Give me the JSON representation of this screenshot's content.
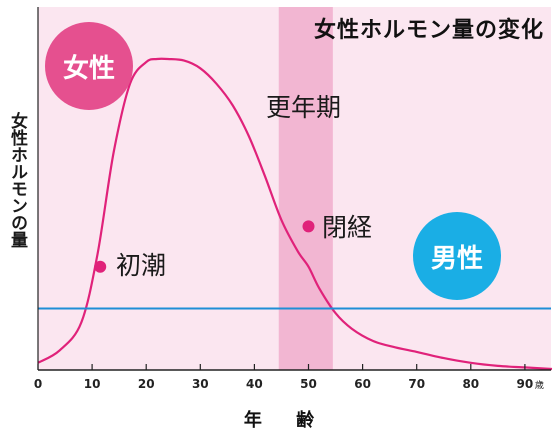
{
  "chart_data": {
    "type": "line",
    "title": "女性ホルモン量の変化",
    "xlabel": "年 齢",
    "ylabel": "女性ホルモンの量",
    "x_unit": "歳",
    "xlim": [
      0,
      95
    ],
    "x_ticks": [
      0,
      10,
      20,
      30,
      40,
      50,
      60,
      70,
      80,
      90
    ],
    "series": [
      {
        "name": "女性",
        "color": "#e0227a",
        "x": [
          0,
          4,
          8,
          11,
          14,
          17,
          20,
          22,
          24,
          27,
          30,
          33,
          36,
          39,
          42,
          45,
          48,
          50,
          52,
          55,
          58,
          62,
          66,
          70,
          75,
          80,
          85,
          90,
          95
        ],
        "y": [
          2,
          6,
          15,
          37,
          70,
          92,
          99,
          100,
          100,
          99.5,
          97,
          92,
          85,
          75,
          62,
          48,
          38,
          33,
          26,
          18,
          13,
          9,
          7,
          5.5,
          3.5,
          2,
          1,
          0.5,
          0
        ]
      },
      {
        "name": "男性",
        "color": "#1e8fd6",
        "x": [
          0,
          95
        ],
        "y": [
          19.5,
          19.5
        ]
      }
    ],
    "shaded_band": {
      "label": "更年期",
      "x_range": [
        44.5,
        54.5
      ]
    },
    "annotations": [
      {
        "text": "初潮",
        "x": 11.5,
        "y": 33
      },
      {
        "text": "閉経",
        "x": 50,
        "y": 46
      }
    ],
    "badges": [
      {
        "text": "女性",
        "color": "#e5508f"
      },
      {
        "text": "男性",
        "color": "#1aaee5"
      }
    ],
    "background": "#fbe6f0",
    "grid": false
  }
}
